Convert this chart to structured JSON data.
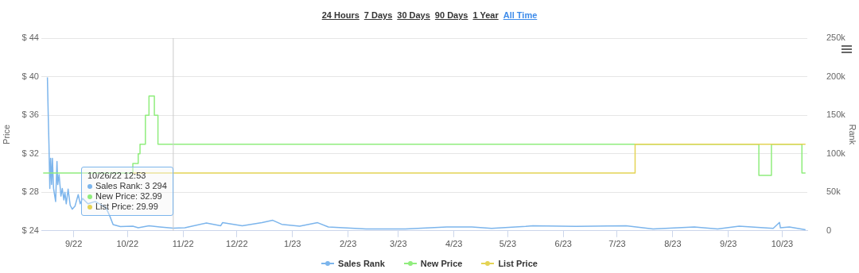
{
  "chart_data": {
    "type": "line",
    "xlabel": null,
    "ylabel": "Price",
    "y2label": "Rank",
    "annotations": [
      "24 Hours",
      "7 Days",
      "30 Days",
      "90 Days",
      "1 Year",
      "All Time",
      "10/26/22 12:53",
      {
        "text": "Sales Rank: 3 294",
        "x": "2022-10-26T12:53"
      },
      {
        "text": "New Price: 32.99",
        "x": "2022-10-26T12:53"
      },
      {
        "text": "List Price: 29.99",
        "x": "2022-10-26T12:53"
      }
    ],
    "xlim": [
      "2022-08-14",
      "2023-10-15"
    ],
    "xticks": [
      {
        "value": "2022-09-01",
        "label": "9/22"
      },
      {
        "value": "2022-10-01",
        "label": "10/22"
      },
      {
        "value": "2022-11-01",
        "label": "11/22"
      },
      {
        "value": "2022-12-01",
        "label": "12/22"
      },
      {
        "value": "2023-01-01",
        "label": "1/23"
      },
      {
        "value": "2023-02-01",
        "label": "2/23"
      },
      {
        "value": "2023-03-01",
        "label": "3/23"
      },
      {
        "value": "2023-04-01",
        "label": "4/23"
      },
      {
        "value": "2023-05-01",
        "label": "5/23"
      },
      {
        "value": "2023-06-01",
        "label": "6/23"
      },
      {
        "value": "2023-07-01",
        "label": "7/23"
      },
      {
        "value": "2023-08-01",
        "label": "8/23"
      },
      {
        "value": "2023-09-01",
        "label": "9/23"
      },
      {
        "value": "2023-10-01",
        "label": "10/23"
      }
    ],
    "ylim": [
      24,
      44
    ],
    "yticks": [
      {
        "value": 24,
        "label": "$ 24"
      },
      {
        "value": 28,
        "label": "$ 28"
      },
      {
        "value": 32,
        "label": "$ 32"
      },
      {
        "value": 36,
        "label": "$ 36"
      },
      {
        "value": 40,
        "label": "$ 40"
      },
      {
        "value": 44,
        "label": "$ 44"
      }
    ],
    "y2lim": [
      0,
      250000
    ],
    "y2ticks": [
      0,
      {
        "value": 50000,
        "label": "50k"
      },
      {
        "value": 100000,
        "label": "100k"
      },
      {
        "value": 150000,
        "label": "150k"
      },
      {
        "value": 200000,
        "label": "200k"
      },
      {
        "value": 250000,
        "label": "250k"
      }
    ],
    "ref_lines": [
      {
        "axis": "x",
        "value": "2022-10-26T12:53",
        "color": "#cccccc"
      }
    ],
    "grid": "y",
    "legend": "bottom",
    "series": [
      {
        "name": "Sales Rank",
        "axis": "y2",
        "color": "#7cb5ec",
        "x": [
          "2022-08-17T09:00",
          "2022-08-17T20:00",
          "2022-08-18T06:00",
          "2022-08-18T17:00",
          "2022-08-19T04:00",
          "2022-08-19T17:00",
          "2022-08-20T04:00",
          "2022-08-20T19:00",
          "2022-08-21T23:00",
          "2022-08-22T17:00",
          "2022-08-23T03:00",
          "2022-08-23T21:00",
          "2022-08-24T22:00",
          "2022-08-25T16:00",
          "2022-08-26T13:00",
          "2022-08-27T03:00",
          "2022-08-27T21:00",
          "2022-08-28T22:00",
          "2022-08-30T02:00",
          "2022-08-31T06:00",
          "2022-09-01T18:00",
          "2022-09-03T13:00",
          "2022-09-04T16:00",
          "2022-09-06",
          "2022-09-09",
          "2022-09-13",
          "2022-09-19",
          "2022-09-21",
          "2022-09-23",
          "2022-09-27",
          "2022-10-04",
          "2022-10-07",
          "2022-10-13",
          "2022-10-19",
          "2022-10-26T12:53",
          "2022-11-02",
          "2022-11-14",
          "2022-11-22",
          "2022-11-23",
          "2022-12-04",
          "2022-12-15",
          "2022-12-21",
          "2022-12-26",
          "2023-01-05",
          "2023-01-15",
          "2023-01-21",
          "2023-02-11",
          "2023-03-05",
          "2023-03-28",
          "2023-04-11",
          "2023-04-22",
          "2023-05-11",
          "2023-05-15",
          "2023-06-08",
          "2023-07-06",
          "2023-07-21",
          "2023-08-13",
          "2023-08-26",
          "2023-09-07",
          "2023-09-26",
          "2023-09-29T12:00",
          "2023-09-30",
          "2023-10-05",
          "2023-10-14"
        ],
        "values": [
          199000,
          150000,
          111000,
          55000,
          94000,
          60000,
          94000,
          55000,
          38000,
          90000,
          60000,
          73000,
          45000,
          55000,
          40000,
          50000,
          35000,
          54000,
          33000,
          28000,
          32000,
          47000,
          35000,
          42000,
          35000,
          38000,
          30000,
          20000,
          8000,
          5500,
          6000,
          4000,
          6500,
          5000,
          3294,
          4000,
          10000,
          6500,
          10500,
          6600,
          10500,
          13600,
          8400,
          6000,
          10500,
          4900,
          2400,
          2400,
          4900,
          4900,
          3100,
          5600,
          6600,
          5600,
          6600,
          2400,
          4900,
          2400,
          6000,
          3100,
          10800,
          3800,
          4900,
          1400
        ]
      },
      {
        "name": "New Price",
        "type": "step",
        "color": "#90ed7d",
        "x": [
          "2022-08-15",
          "2022-10-04",
          "2022-10-07",
          "2022-10-08",
          "2022-10-11",
          "2022-10-13",
          "2022-10-16",
          "2022-10-18",
          "2023-09-18",
          "2023-09-25",
          "2023-10-12",
          "2023-10-14"
        ],
        "values": [
          29.99,
          30.99,
          31.99,
          32.99,
          35.99,
          37.99,
          35.99,
          32.99,
          29.75,
          32.99,
          29.99,
          29.99
        ]
      },
      {
        "name": "List Price",
        "type": "step",
        "color": "#e4d354",
        "x": [
          "2022-10-04",
          "2023-07-11",
          "2023-10-14"
        ],
        "values": [
          29.99,
          32.99,
          32.99
        ]
      }
    ]
  }
}
